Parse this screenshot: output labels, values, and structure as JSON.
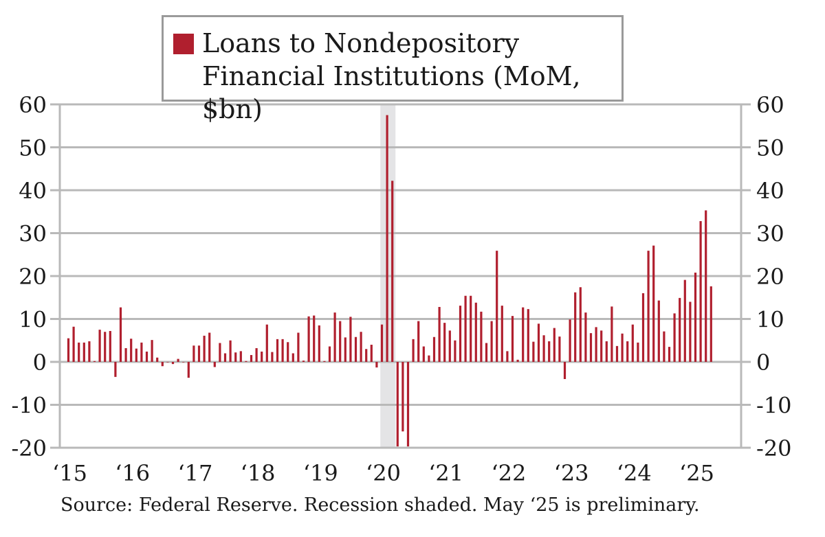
{
  "chart_data": {
    "type": "bar",
    "legend": "Loans to Nondepository Financial Institutions (MoM, $bn)",
    "legend_position": "top-center",
    "source": "Source: Federal Reserve. Recession shaded. May ‘25 is preliminary.",
    "ylim": [
      -20,
      60
    ],
    "yticks": [
      60,
      50,
      40,
      30,
      20,
      10,
      0,
      -10,
      -20
    ],
    "ytick_labels": [
      "60",
      "50",
      "40",
      "30",
      "20",
      "10",
      "0",
      "-10",
      "-20"
    ],
    "grid": true,
    "x_start": "2015-01",
    "xtick_labels": [
      "‘15",
      "‘16",
      "‘17",
      "‘18",
      "‘19",
      "‘20",
      "‘21",
      "‘22",
      "‘23",
      "‘24",
      "‘25"
    ],
    "recession_shaded": [
      "2020-02",
      "2020-04"
    ],
    "series": [
      {
        "color": "#b01f2e",
        "values": [
          5.5,
          8.2,
          4.5,
          4.5,
          4.8,
          0.2,
          7.5,
          7.0,
          7.2,
          -3.5,
          12.7,
          3.2,
          5.4,
          3.1,
          4.5,
          2.4,
          5.1,
          1.0,
          -1.0,
          -0.1,
          -0.5,
          0.7,
          -0.1,
          -3.7,
          3.8,
          3.8,
          6.1,
          6.8,
          -1.2,
          4.4,
          2.0,
          5.0,
          2.2,
          2.5,
          0.2,
          1.6,
          3.2,
          2.4,
          8.7,
          2.3,
          5.3,
          5.3,
          4.6,
          2.0,
          6.8,
          0.3,
          10.6,
          10.8,
          8.5,
          0.2,
          3.6,
          11.5,
          9.5,
          5.7,
          10.5,
          5.8,
          7.0,
          3.0,
          4.0,
          -1.3,
          8.7,
          57.5,
          42.2,
          -19.7,
          -16.2,
          -19.7,
          5.3,
          9.5,
          3.6,
          1.5,
          5.8,
          12.8,
          9.1,
          7.3,
          5.0,
          13.1,
          15.4,
          15.4,
          13.8,
          11.7,
          4.4,
          9.5,
          25.9,
          13.1,
          2.5,
          10.7,
          0.5,
          12.7,
          12.3,
          4.7,
          8.9,
          6.2,
          4.8,
          7.9,
          5.9,
          -4.0,
          9.9,
          16.2,
          17.4,
          11.5,
          6.7,
          8.1,
          7.3,
          4.8,
          12.9,
          3.7,
          6.6,
          4.8,
          8.7,
          4.5,
          16.0,
          25.9,
          27.1,
          14.3,
          7.1,
          3.5,
          11.3,
          14.9,
          19.1,
          14.0,
          20.8,
          32.8,
          35.3,
          17.6
        ]
      }
    ]
  }
}
